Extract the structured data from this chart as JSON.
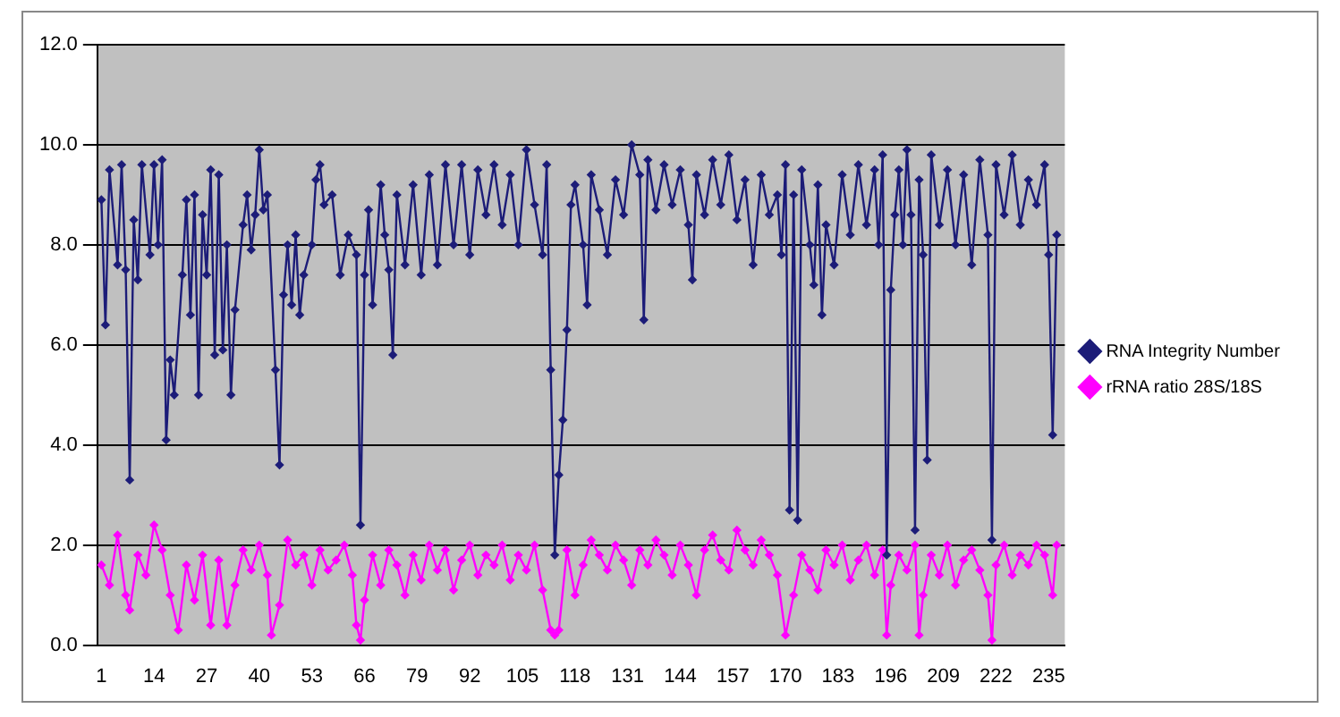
{
  "chart_data": {
    "type": "line",
    "legend": "right",
    "grid": "y",
    "marker": "diamond",
    "line_style": "solid",
    "xlim": [
      0,
      239
    ],
    "xticks": [
      1,
      14,
      27,
      40,
      53,
      66,
      79,
      92,
      105,
      118,
      131,
      144,
      157,
      170,
      183,
      196,
      209,
      222,
      235
    ],
    "ylim": [
      0,
      12
    ],
    "yticks": [
      {
        "value": 0,
        "label": "0.0"
      },
      {
        "value": 2,
        "label": "2.0"
      },
      {
        "value": 4,
        "label": "4.0"
      },
      {
        "value": 6,
        "label": "6.0"
      },
      {
        "value": 8,
        "label": "8.0"
      },
      {
        "value": 10,
        "label": "10.0"
      },
      {
        "value": 12,
        "label": "12.0"
      }
    ],
    "series": [
      {
        "name": "RNA Integrity Number",
        "color": "#1c1c78",
        "x": [
          1,
          2,
          3,
          5,
          6,
          7,
          8,
          9,
          10,
          11,
          13,
          14,
          15,
          16,
          17,
          18,
          19,
          21,
          22,
          23,
          24,
          25,
          26,
          27,
          28,
          29,
          30,
          31,
          32,
          33,
          34,
          36,
          37,
          38,
          39,
          40,
          41,
          42,
          44,
          45,
          46,
          47,
          48,
          49,
          50,
          51,
          53,
          54,
          55,
          56,
          58,
          60,
          62,
          64,
          65,
          66,
          67,
          68,
          70,
          71,
          72,
          73,
          74,
          76,
          78,
          80,
          82,
          84,
          86,
          88,
          90,
          92,
          94,
          96,
          98,
          100,
          102,
          104,
          106,
          108,
          110,
          111,
          112,
          113,
          114,
          115,
          116,
          117,
          118,
          120,
          121,
          122,
          124,
          126,
          128,
          130,
          132,
          134,
          135,
          136,
          138,
          140,
          142,
          144,
          146,
          147,
          148,
          150,
          152,
          154,
          156,
          158,
          160,
          162,
          164,
          166,
          168,
          169,
          170,
          171,
          172,
          173,
          174,
          176,
          177,
          178,
          179,
          180,
          182,
          184,
          186,
          188,
          190,
          192,
          193,
          194,
          195,
          196,
          197,
          198,
          199,
          200,
          201,
          202,
          203,
          204,
          205,
          206,
          208,
          210,
          212,
          214,
          216,
          218,
          220,
          221,
          222,
          224,
          226,
          228,
          230,
          232,
          234,
          235,
          236,
          237
        ],
        "values": [
          8.9,
          6.4,
          9.5,
          7.6,
          9.6,
          7.5,
          3.3,
          8.5,
          7.3,
          9.6,
          7.8,
          9.6,
          8.0,
          9.7,
          4.1,
          5.7,
          5.0,
          7.4,
          8.9,
          6.6,
          9.0,
          5.0,
          8.6,
          7.4,
          9.5,
          5.8,
          9.4,
          5.9,
          8.0,
          5.0,
          6.7,
          8.4,
          9.0,
          7.9,
          8.6,
          9.9,
          8.7,
          9.0,
          5.5,
          3.6,
          7.0,
          8.0,
          6.8,
          8.2,
          6.6,
          7.4,
          8.0,
          9.3,
          9.6,
          8.8,
          9.0,
          7.4,
          8.2,
          7.8,
          2.4,
          7.4,
          8.7,
          6.8,
          9.2,
          8.2,
          7.5,
          5.8,
          9.0,
          7.6,
          9.2,
          7.4,
          9.4,
          7.6,
          9.6,
          8.0,
          9.6,
          7.8,
          9.5,
          8.6,
          9.6,
          8.4,
          9.4,
          8.0,
          9.9,
          8.8,
          7.8,
          9.6,
          5.5,
          1.8,
          3.4,
          4.5,
          6.3,
          8.8,
          9.2,
          8.0,
          6.8,
          9.4,
          8.7,
          7.8,
          9.3,
          8.6,
          10.0,
          9.4,
          6.5,
          9.7,
          8.7,
          9.6,
          8.8,
          9.5,
          8.4,
          7.3,
          9.4,
          8.6,
          9.7,
          8.8,
          9.8,
          8.5,
          9.3,
          7.6,
          9.4,
          8.6,
          9.0,
          7.8,
          9.6,
          2.7,
          9.0,
          2.5,
          9.5,
          8.0,
          7.2,
          9.2,
          6.6,
          8.4,
          7.6,
          9.4,
          8.2,
          9.6,
          8.4,
          9.5,
          8.0,
          9.8,
          1.8,
          7.1,
          8.6,
          9.5,
          8.0,
          9.9,
          8.6,
          2.3,
          9.3,
          7.8,
          3.7,
          9.8,
          8.4,
          9.5,
          8.0,
          9.4,
          7.6,
          9.7,
          8.2,
          2.1,
          9.6,
          8.6,
          9.8,
          8.4,
          9.3,
          8.8,
          9.6,
          7.8,
          4.2,
          8.2
        ]
      },
      {
        "name": "rRNA ratio 28S/18S",
        "color": "#ff00ff",
        "x": [
          1,
          3,
          5,
          7,
          8,
          10,
          12,
          14,
          16,
          18,
          20,
          22,
          24,
          26,
          28,
          30,
          32,
          34,
          36,
          38,
          40,
          42,
          43,
          45,
          47,
          49,
          51,
          53,
          55,
          57,
          59,
          61,
          63,
          64,
          65,
          66,
          68,
          70,
          72,
          74,
          76,
          78,
          80,
          82,
          84,
          86,
          88,
          90,
          92,
          94,
          96,
          98,
          100,
          102,
          104,
          106,
          108,
          110,
          112,
          113,
          114,
          116,
          118,
          120,
          122,
          124,
          126,
          128,
          130,
          132,
          134,
          136,
          138,
          140,
          142,
          144,
          146,
          148,
          150,
          152,
          154,
          156,
          158,
          160,
          162,
          164,
          166,
          168,
          170,
          172,
          174,
          176,
          178,
          180,
          182,
          184,
          186,
          188,
          190,
          192,
          194,
          195,
          196,
          198,
          200,
          202,
          203,
          204,
          206,
          208,
          210,
          212,
          214,
          216,
          218,
          220,
          221,
          222,
          224,
          226,
          228,
          230,
          232,
          234,
          236,
          237
        ],
        "values": [
          1.6,
          1.2,
          2.2,
          1.0,
          0.7,
          1.8,
          1.4,
          2.4,
          1.9,
          1.0,
          0.3,
          1.6,
          0.9,
          1.8,
          0.4,
          1.7,
          0.4,
          1.2,
          1.9,
          1.5,
          2.0,
          1.4,
          0.2,
          0.8,
          2.1,
          1.6,
          1.8,
          1.2,
          1.9,
          1.5,
          1.7,
          2.0,
          1.4,
          0.4,
          0.1,
          0.9,
          1.8,
          1.2,
          1.9,
          1.6,
          1.0,
          1.8,
          1.3,
          2.0,
          1.5,
          1.9,
          1.1,
          1.7,
          2.0,
          1.4,
          1.8,
          1.6,
          2.0,
          1.3,
          1.8,
          1.5,
          2.0,
          1.1,
          0.3,
          0.2,
          0.3,
          1.9,
          1.0,
          1.6,
          2.1,
          1.8,
          1.5,
          2.0,
          1.7,
          1.2,
          1.9,
          1.6,
          2.1,
          1.8,
          1.4,
          2.0,
          1.6,
          1.0,
          1.9,
          2.2,
          1.7,
          1.5,
          2.3,
          1.9,
          1.6,
          2.1,
          1.8,
          1.4,
          0.2,
          1.0,
          1.8,
          1.5,
          1.1,
          1.9,
          1.6,
          2.0,
          1.3,
          1.7,
          2.0,
          1.4,
          1.9,
          0.2,
          1.2,
          1.8,
          1.5,
          2.0,
          0.2,
          1.0,
          1.8,
          1.4,
          2.0,
          1.2,
          1.7,
          1.9,
          1.5,
          1.0,
          0.1,
          1.6,
          2.0,
          1.4,
          1.8,
          1.6,
          2.0,
          1.8,
          1.0,
          2.0
        ]
      }
    ]
  }
}
